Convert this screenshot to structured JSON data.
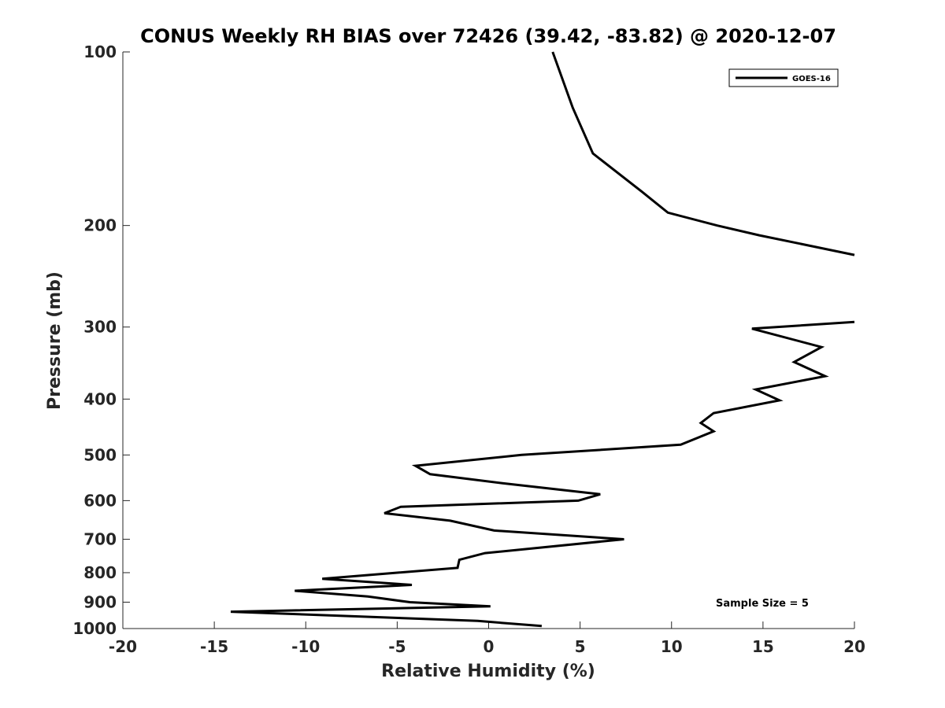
{
  "chart_data": {
    "type": "line",
    "title": "CONUS Weekly RH BIAS over 72426 (39.42, -83.82) @ 2020-12-07",
    "xlabel": "Relative Humidity (%)",
    "ylabel": "Pressure (mb)",
    "xlim": [
      -20,
      20
    ],
    "ylim": [
      1000,
      100
    ],
    "y_scale": "log",
    "y_reversed": true,
    "x_ticks": [
      -20,
      -15,
      -10,
      -5,
      0,
      5,
      10,
      15,
      20
    ],
    "x_tick_labels": [
      "-20",
      "-15",
      "-10",
      "-5",
      "0",
      "5",
      "10",
      "15",
      "20"
    ],
    "y_ticks": [
      100,
      200,
      300,
      400,
      500,
      600,
      700,
      800,
      900,
      1000
    ],
    "y_tick_labels": [
      "100",
      "200",
      "300",
      "400",
      "500",
      "600",
      "700",
      "800",
      "900",
      "1000"
    ],
    "grid": false,
    "legend_position": "top-right",
    "annotation": "Sample Size = 5",
    "series": [
      {
        "name": "GOES-16",
        "color": "#000000",
        "segments": [
          [
            {
              "x": 3.5,
              "y": 100
            },
            {
              "x": 4.6,
              "y": 125
            },
            {
              "x": 5.7,
              "y": 150
            },
            {
              "x": 8.4,
              "y": 175
            },
            {
              "x": 9.8,
              "y": 190
            },
            {
              "x": 12.5,
              "y": 200
            },
            {
              "x": 14.8,
              "y": 208
            },
            {
              "x": 20.0,
              "y": 225
            }
          ],
          [
            {
              "x": 20.0,
              "y": 294
            },
            {
              "x": 14.4,
              "y": 302
            },
            {
              "x": 18.2,
              "y": 325
            },
            {
              "x": 16.7,
              "y": 345
            },
            {
              "x": 18.4,
              "y": 365
            },
            {
              "x": 14.6,
              "y": 385
            },
            {
              "x": 15.9,
              "y": 402
            },
            {
              "x": 12.3,
              "y": 423
            },
            {
              "x": 11.6,
              "y": 440
            },
            {
              "x": 12.3,
              "y": 455
            },
            {
              "x": 10.5,
              "y": 480
            },
            {
              "x": 1.8,
              "y": 500
            },
            {
              "x": -4.0,
              "y": 522
            },
            {
              "x": -3.2,
              "y": 540
            },
            {
              "x": 0.8,
              "y": 560
            },
            {
              "x": 6.1,
              "y": 585
            },
            {
              "x": 4.9,
              "y": 600
            },
            {
              "x": -4.8,
              "y": 615
            },
            {
              "x": -5.7,
              "y": 631
            },
            {
              "x": -2.1,
              "y": 650
            },
            {
              "x": 0.3,
              "y": 676
            },
            {
              "x": 7.4,
              "y": 700
            },
            {
              "x": -0.2,
              "y": 740
            },
            {
              "x": -1.6,
              "y": 760
            },
            {
              "x": -1.7,
              "y": 785
            },
            {
              "x": -5.0,
              "y": 800
            },
            {
              "x": -9.1,
              "y": 820
            },
            {
              "x": -4.2,
              "y": 840
            },
            {
              "x": -10.6,
              "y": 860
            },
            {
              "x": -6.6,
              "y": 880
            },
            {
              "x": -4.3,
              "y": 900
            },
            {
              "x": 0.1,
              "y": 915
            },
            {
              "x": -14.1,
              "y": 935
            },
            {
              "x": -0.6,
              "y": 970
            },
            {
              "x": 2.9,
              "y": 990
            }
          ]
        ]
      }
    ]
  }
}
